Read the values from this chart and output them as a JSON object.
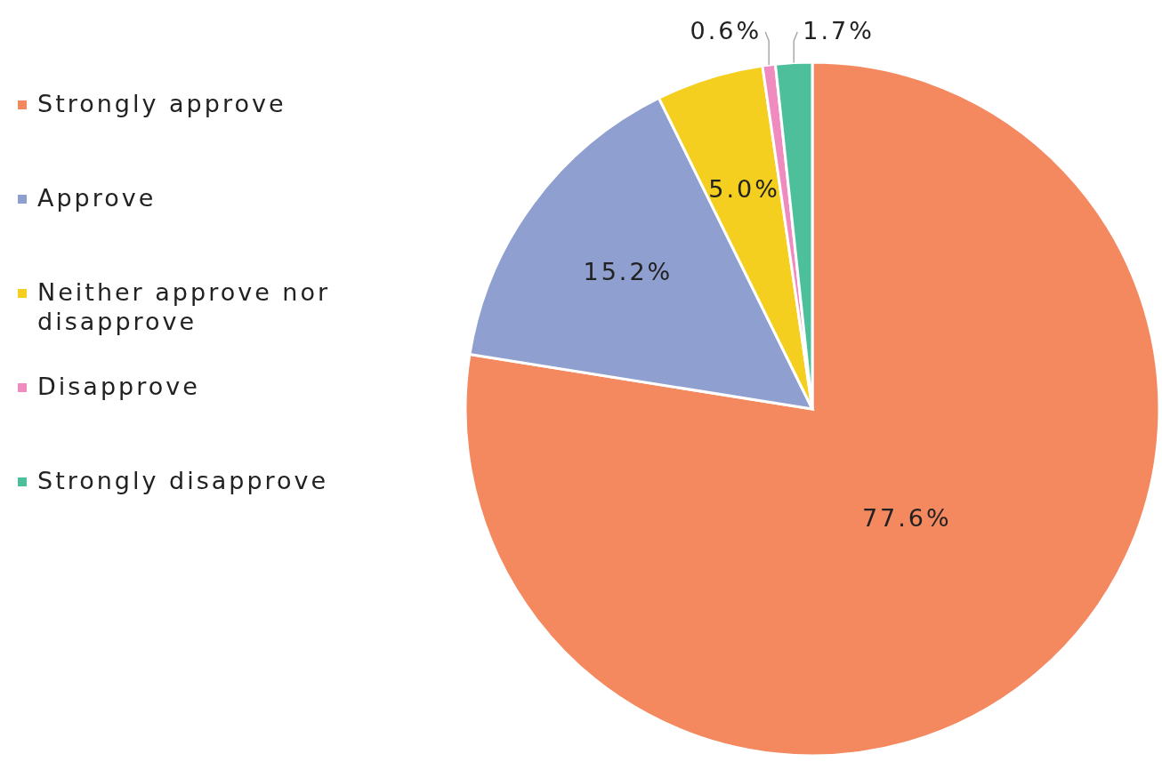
{
  "chart_data": {
    "type": "pie",
    "categories": [
      "Strongly approve",
      "Approve",
      "Neither approve nor disapprove",
      "Disapprove",
      "Strongly disapprove"
    ],
    "values": [
      77.6,
      15.2,
      5.0,
      0.6,
      1.7
    ],
    "value_labels": [
      "77.6%",
      "15.2%",
      "5.0%",
      "0.6%",
      "1.7%"
    ],
    "colors": [
      "#f4895f",
      "#8e9fd0",
      "#f5cf1f",
      "#f08bc0",
      "#4dbf9a"
    ],
    "legend": "left"
  }
}
